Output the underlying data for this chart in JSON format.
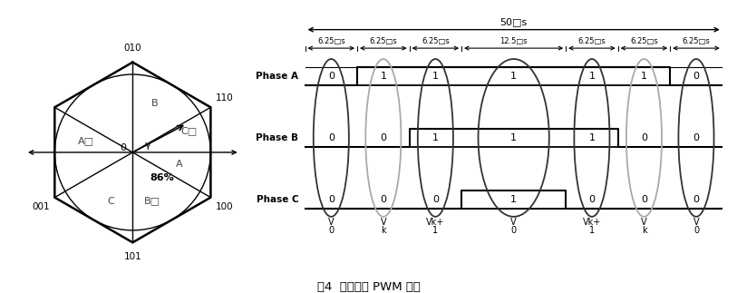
{
  "title": "图4  空间矢量 PWM 原理",
  "phase_labels": [
    "Phase A",
    "Phase B",
    "Phase C"
  ],
  "total_time_label": "50□s",
  "segment_labels": [
    "6.25□s",
    "6.25□s",
    "6.25□s",
    "12.5□s",
    "6.25□s",
    "6.25□s",
    "6.25□s"
  ],
  "segment_widths": [
    6.25,
    6.25,
    6.25,
    12.5,
    6.25,
    6.25,
    6.25
  ],
  "phaseA_signal": [
    0,
    1,
    1,
    1,
    1,
    1,
    0
  ],
  "phaseB_signal": [
    0,
    0,
    1,
    1,
    1,
    0,
    0
  ],
  "phaseC_signal": [
    0,
    0,
    0,
    1,
    0,
    0,
    0
  ],
  "bottom_labels": [
    [
      "V",
      "0"
    ],
    [
      "V",
      "k"
    ],
    [
      "Vk+",
      "1"
    ],
    [
      "V",
      "0"
    ],
    [
      "Vk+",
      "1"
    ],
    [
      "V",
      "k"
    ],
    [
      "V",
      "0"
    ]
  ],
  "ellipse_colors_dark": [
    0,
    2,
    3,
    4,
    6
  ],
  "ellipse_colors_light": [
    1,
    5
  ],
  "bg_color": "#ffffff"
}
